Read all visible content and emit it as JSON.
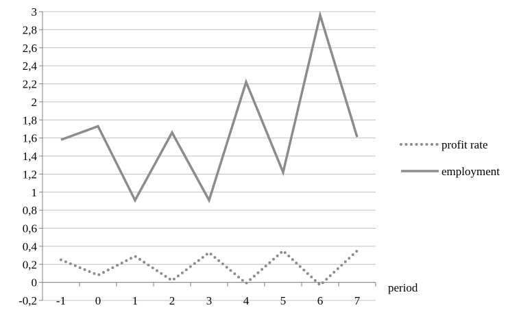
{
  "chart_data": {
    "type": "line",
    "title": "",
    "xlabel": "period",
    "ylabel": "",
    "x": [
      "-1",
      "0",
      "1",
      "2",
      "3",
      "4",
      "5",
      "6",
      "7"
    ],
    "ylim": [
      -0.2,
      3
    ],
    "yticks": [
      "-0,2",
      "0",
      "0,2",
      "0,4",
      "0,6",
      "0,8",
      "1",
      "1,2",
      "1,4",
      "1,6",
      "1,8",
      "2",
      "2,2",
      "2,4",
      "2,6",
      "2,8",
      "3"
    ],
    "grid": "horizontal",
    "legend_position": "right",
    "series": [
      {
        "name": "profit rate",
        "style": "dotted",
        "color": "#8c8c8c",
        "values": [
          0.25,
          0.08,
          0.29,
          0.02,
          0.33,
          -0.01,
          0.35,
          -0.03,
          0.35
        ]
      },
      {
        "name": "employment",
        "style": "solid",
        "color": "#8c8c8c",
        "values": [
          1.58,
          1.73,
          0.91,
          1.66,
          0.91,
          2.22,
          1.22,
          2.96,
          1.61
        ]
      }
    ]
  }
}
